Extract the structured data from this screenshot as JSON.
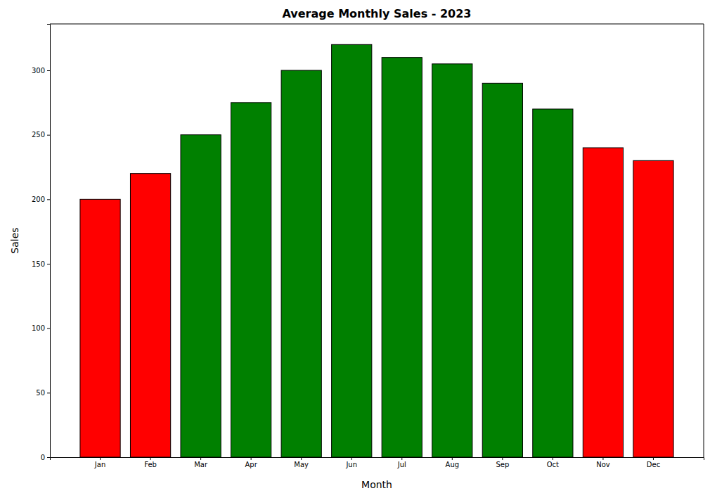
{
  "chart_data": {
    "type": "bar",
    "title": "Average Monthly Sales - 2023",
    "x_label": "Month",
    "y_label": "Sales",
    "categories": [
      "Jan",
      "Feb",
      "Mar",
      "Apr",
      "May",
      "Jun",
      "Jul",
      "Aug",
      "Sep",
      "Oct",
      "Nov",
      "Dec"
    ],
    "values": [
      200,
      220,
      250,
      275,
      300,
      320,
      310,
      305,
      290,
      270,
      240,
      230
    ],
    "colors": [
      "#ff0000",
      "#ff0000",
      "#008000",
      "#008000",
      "#008000",
      "#008000",
      "#008000",
      "#008000",
      "#008000",
      "#008000",
      "#ff0000",
      "#ff0000"
    ],
    "ylim": [
      0,
      336
    ],
    "yticks": [
      0,
      50,
      100,
      150,
      200,
      250,
      300
    ],
    "grid": false
  }
}
